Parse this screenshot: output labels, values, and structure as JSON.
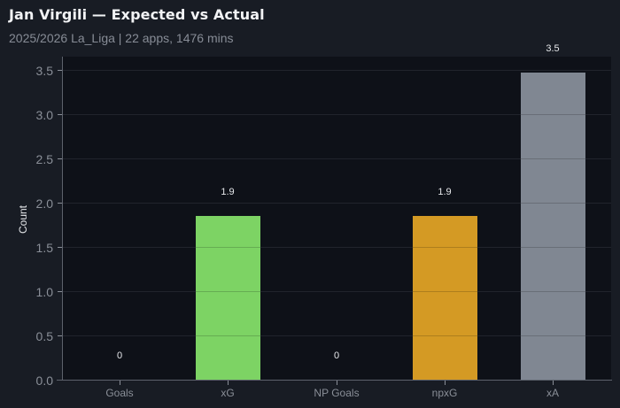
{
  "header": {
    "title": "Jan Virgili — Expected vs Actual",
    "subtitle": "2025/2026 La_Liga | 22 apps, 1476 mins"
  },
  "chart_data": {
    "type": "bar",
    "title": "Jan Virgili — Expected vs Actual",
    "subtitle": "2025/2026 La_Liga | 22 apps, 1476 mins",
    "xlabel": "",
    "ylabel": "Count",
    "categories": [
      "Goals",
      "xG",
      "NP Goals",
      "npxG",
      "xA"
    ],
    "values": [
      0,
      1.85,
      0,
      1.85,
      3.47
    ],
    "value_labels": [
      "0",
      "1.9",
      "0",
      "1.9",
      "3.5"
    ],
    "colors": [
      "#7dd364",
      "#7dd364",
      "#d49a24",
      "#d49a24",
      "#808792"
    ],
    "bar_colors": {
      "xG": "#7dd364",
      "npxG": "#d49a24",
      "xA": "#808792"
    },
    "ylim": [
      0,
      3.65
    ],
    "yticks": [
      "0.0",
      "0.5",
      "1.0",
      "1.5",
      "2.0",
      "2.5",
      "3.0",
      "3.5"
    ],
    "grid": true,
    "legend": null
  }
}
